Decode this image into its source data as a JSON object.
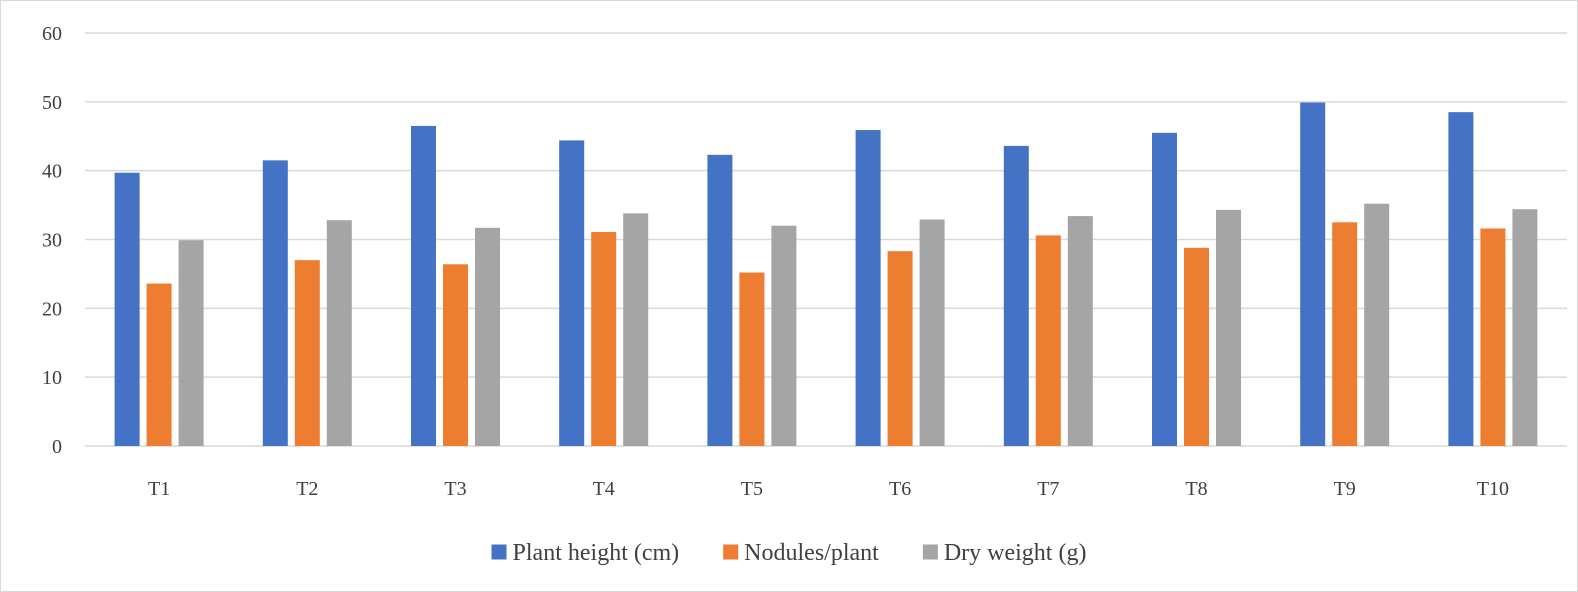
{
  "chart_data": {
    "type": "bar",
    "title": "",
    "xlabel": "",
    "ylabel": "",
    "categories": [
      "T1",
      "T2",
      "T3",
      "T4",
      "T5",
      "T6",
      "T7",
      "T8",
      "T9",
      "T10"
    ],
    "ylim": [
      0,
      60
    ],
    "yticks": [
      "0",
      "10",
      "20",
      "30",
      "40",
      "50",
      "60"
    ],
    "grid": true,
    "legend_position": "bottom",
    "series": [
      {
        "name": "Plant height (cm)",
        "color": "#4472c4",
        "values": [
          39.7,
          41.5,
          46.5,
          44.4,
          42.3,
          45.9,
          43.6,
          45.5,
          49.9,
          48.5
        ]
      },
      {
        "name": "Nodules/plant",
        "color": "#ed7d31",
        "values": [
          23.6,
          27.0,
          26.4,
          31.1,
          25.2,
          28.3,
          30.6,
          28.8,
          32.5,
          31.6
        ]
      },
      {
        "name": "Dry weight (g)",
        "color": "#a5a5a5",
        "values": [
          29.9,
          32.8,
          31.7,
          33.8,
          32.0,
          32.9,
          33.4,
          34.3,
          35.2,
          34.4
        ]
      }
    ]
  }
}
